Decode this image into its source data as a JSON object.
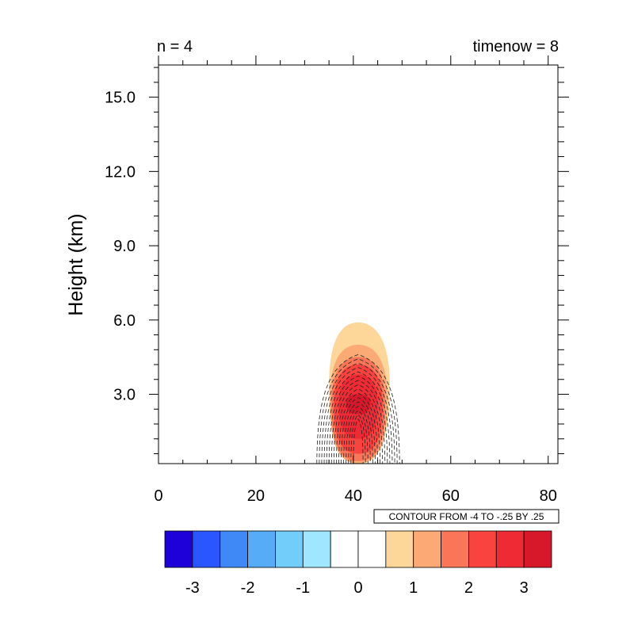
{
  "chart_data": {
    "type": "heatmap",
    "title_left": "n = 4",
    "title_right": "timenow = 8",
    "xlabel": "",
    "ylabel": "Height (km)",
    "xlim": [
      0,
      82
    ],
    "ylim": [
      0.2,
      16.3
    ],
    "x_ticks": [
      0,
      20,
      40,
      60,
      80
    ],
    "x_tick_labels": [
      "0",
      "20",
      "40",
      "60",
      "80"
    ],
    "y_ticks": [
      3,
      6,
      9,
      12,
      15
    ],
    "y_tick_labels": [
      "3.0",
      "6.0",
      "9.0",
      "12.0",
      "15.0"
    ],
    "shaded_field": {
      "center_x": 41,
      "levels": [
        {
          "value": 0.5,
          "color": "#fdd69a",
          "x_range": [
            35,
            47.5
          ],
          "z_range": [
            0.2,
            5.9
          ]
        },
        {
          "value": 1.0,
          "color": "#fcaa75",
          "x_range": [
            35.2,
            47
          ],
          "z_range": [
            0.2,
            5.0
          ]
        },
        {
          "value": 1.5,
          "color": "#fb7658",
          "x_range": [
            35.5,
            46.5
          ],
          "z_range": [
            0.3,
            4.5
          ]
        },
        {
          "value": 2.0,
          "color": "#f9433f",
          "x_range": [
            36,
            46
          ],
          "z_range": [
            0.6,
            4.2
          ]
        },
        {
          "value": 2.5,
          "color": "#ee2a35",
          "x_range": [
            37,
            45
          ],
          "z_range": [
            1.2,
            3.8
          ]
        },
        {
          "value": 3.0,
          "color": "#d7182a",
          "x_range": [
            38.5,
            43.5
          ],
          "z_range": [
            2.2,
            3.0
          ]
        }
      ]
    },
    "dashed_contours": {
      "from": -4,
      "to": -0.25,
      "by": 0.25,
      "center_x": 41
    },
    "contour_info": "CONTOUR FROM -4 TO -.25 BY .25",
    "colorbar": {
      "colors": [
        "#1e00d8",
        "#2a56ff",
        "#3f89f7",
        "#56acf6",
        "#73cdfa",
        "#9ee7ff",
        "#ffffff",
        "#ffffff",
        "#fdd69a",
        "#fcaa75",
        "#fb7658",
        "#f9433f",
        "#ee2a35",
        "#d7182a"
      ],
      "labels": [
        "-3",
        "-2",
        "-1",
        "0",
        "1",
        "2",
        "3"
      ]
    }
  }
}
